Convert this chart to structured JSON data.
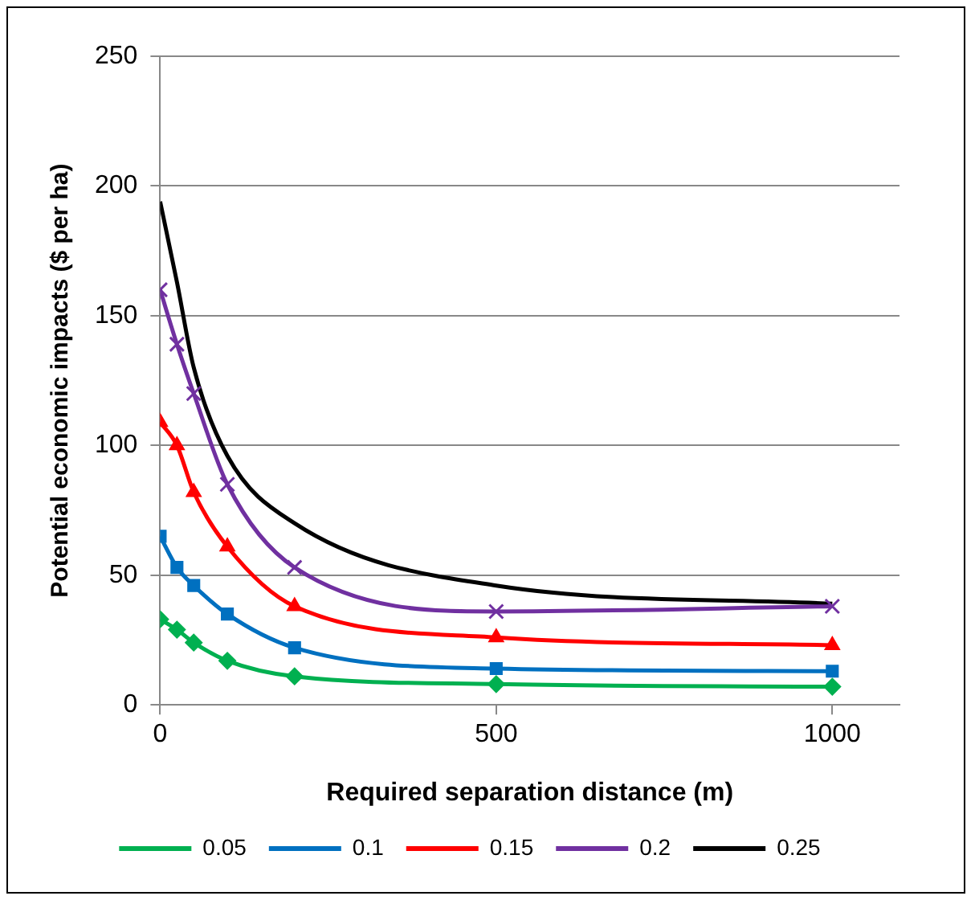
{
  "chart_data": {
    "type": "line",
    "xlabel": "Required separation distance (m)",
    "ylabel": "Potential economic impacts ($ per ha)",
    "x": [
      0,
      25,
      50,
      100,
      200,
      500,
      1000
    ],
    "xlim": [
      0,
      1100
    ],
    "xticks": [
      0,
      500,
      1000
    ],
    "ylim": [
      0,
      250
    ],
    "yticks": [
      0,
      50,
      100,
      150,
      200,
      250
    ],
    "grid": "y",
    "legend": "bottom",
    "series": [
      {
        "name": "0.05",
        "color": "#00b050",
        "marker": "diamond",
        "values": [
          33,
          29,
          24,
          17,
          11,
          8,
          7
        ]
      },
      {
        "name": "0.1",
        "color": "#0070c0",
        "marker": "square",
        "values": [
          65,
          53,
          46,
          35,
          22,
          14,
          13
        ]
      },
      {
        "name": "0.15",
        "color": "#ff0000",
        "marker": "triangle",
        "values": [
          109,
          100,
          82,
          61,
          38,
          26,
          23
        ]
      },
      {
        "name": "0.2",
        "color": "#7030a0",
        "marker": "cross",
        "values": [
          160,
          139,
          120,
          85,
          53,
          36,
          38
        ]
      },
      {
        "name": "0.25",
        "color": "#000000",
        "marker": "none",
        "values": [
          194,
          163,
          130,
          96,
          70,
          46,
          39
        ]
      }
    ]
  }
}
